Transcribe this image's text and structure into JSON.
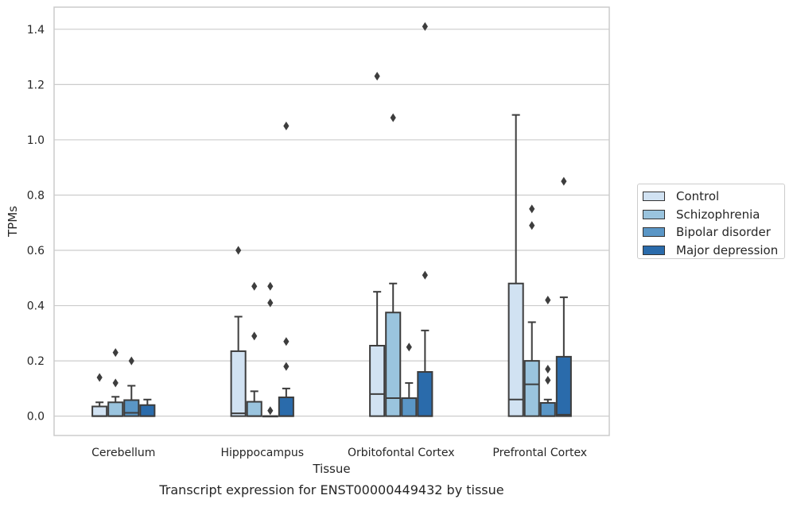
{
  "chart_data": {
    "type": "box",
    "title": "Transcript expression for ENST00000449432 by tissue",
    "xlabel": "Tissue",
    "ylabel": "TPMs",
    "ylim": [
      -0.07,
      1.48
    ],
    "yticks": [
      "0.0",
      "0.2",
      "0.4",
      "0.6",
      "0.8",
      "1.0",
      "1.2",
      "1.4"
    ],
    "ytick_values": [
      0.0,
      0.2,
      0.4,
      0.6,
      0.8,
      1.0,
      1.2,
      1.4
    ],
    "grid": true,
    "legend_position": "right",
    "categories": [
      "Cerebellum",
      "Hipppocampus",
      "Orbitofontal Cortex",
      "Prefrontal Cortex"
    ],
    "series": [
      {
        "name": "Control",
        "color": "#d1e2f2",
        "boxes": [
          {
            "min": 0.0,
            "q1": 0.0,
            "median": 0.0,
            "q3": 0.035,
            "max": 0.05,
            "outliers": [
              0.14
            ]
          },
          {
            "min": 0.0,
            "q1": 0.0,
            "median": 0.01,
            "q3": 0.235,
            "max": 0.36,
            "outliers": [
              0.6
            ]
          },
          {
            "min": 0.0,
            "q1": 0.0,
            "median": 0.08,
            "q3": 0.255,
            "max": 0.45,
            "outliers": [
              1.23
            ]
          },
          {
            "min": 0.0,
            "q1": 0.0,
            "median": 0.06,
            "q3": 0.48,
            "max": 1.09,
            "outliers": []
          }
        ]
      },
      {
        "name": "Schizophrenia",
        "color": "#9ac4de",
        "boxes": [
          {
            "min": 0.0,
            "q1": 0.0,
            "median": 0.0,
            "q3": 0.05,
            "max": 0.07,
            "outliers": [
              0.12,
              0.23
            ]
          },
          {
            "min": 0.0,
            "q1": 0.0,
            "median": 0.0,
            "q3": 0.052,
            "max": 0.09,
            "outliers": [
              0.29,
              0.47
            ]
          },
          {
            "min": 0.0,
            "q1": 0.0,
            "median": 0.065,
            "q3": 0.375,
            "max": 0.48,
            "outliers": [
              1.08
            ]
          },
          {
            "min": 0.0,
            "q1": 0.0,
            "median": 0.115,
            "q3": 0.2,
            "max": 0.34,
            "outliers": [
              0.69,
              0.75
            ]
          }
        ]
      },
      {
        "name": "Bipolar disorder",
        "color": "#5a96c6",
        "boxes": [
          {
            "min": 0.0,
            "q1": 0.0,
            "median": 0.012,
            "q3": 0.058,
            "max": 0.11,
            "outliers": [
              0.2
            ]
          },
          {
            "min": 0.0,
            "q1": 0.0,
            "median": 0.0,
            "q3": 0.0,
            "max": 0.0,
            "outliers": [
              0.02,
              0.41,
              0.47
            ]
          },
          {
            "min": 0.0,
            "q1": 0.0,
            "median": 0.065,
            "q3": 0.065,
            "max": 0.12,
            "outliers": [
              0.25
            ]
          },
          {
            "min": 0.0,
            "q1": 0.0,
            "median": 0.0,
            "q3": 0.048,
            "max": 0.06,
            "outliers": [
              0.13,
              0.17,
              0.42
            ]
          }
        ]
      },
      {
        "name": "Major depression",
        "color": "#2a6bab",
        "boxes": [
          {
            "min": 0.0,
            "q1": 0.0,
            "median": 0.0,
            "q3": 0.04,
            "max": 0.06,
            "outliers": []
          },
          {
            "min": 0.0,
            "q1": 0.0,
            "median": 0.0,
            "q3": 0.068,
            "max": 0.1,
            "outliers": [
              0.18,
              0.27,
              1.05
            ]
          },
          {
            "min": 0.0,
            "q1": 0.0,
            "median": 0.0,
            "q3": 0.16,
            "max": 0.31,
            "outliers": [
              0.51,
              1.41
            ]
          },
          {
            "min": 0.0,
            "q1": 0.0,
            "median": 0.005,
            "q3": 0.215,
            "max": 0.43,
            "outliers": [
              0.85
            ]
          }
        ]
      }
    ]
  }
}
